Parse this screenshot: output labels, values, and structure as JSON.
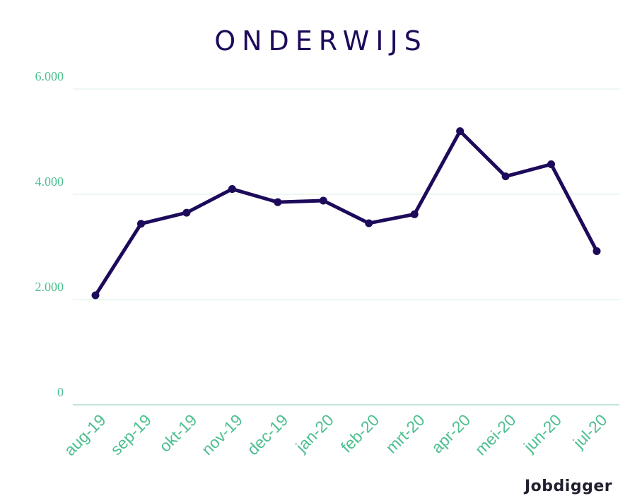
{
  "chart_data": {
    "type": "line",
    "title": "ONDERWIJS",
    "categories": [
      "aug-19",
      "sep-19",
      "okt-19",
      "nov-19",
      "dec-19",
      "jan-20",
      "feb-20",
      "mrt-20",
      "apr-20",
      "mei-20",
      "jun-20",
      "jul-20"
    ],
    "series": [
      {
        "values": [
          2080,
          3440,
          3650,
          4100,
          3850,
          3880,
          3450,
          3620,
          5200,
          4340,
          4570,
          2920
        ]
      }
    ],
    "yticks": [
      "0",
      "2.000",
      "4.000",
      "6.000"
    ],
    "ytick_values": [
      0,
      2000,
      4000,
      6000
    ],
    "ylim": [
      0,
      6000
    ],
    "xlabel": "",
    "ylabel": "",
    "grid": true,
    "colors": {
      "line": "#1e0a5a",
      "ticks": "#4cbf8f",
      "grid": "#d8efe6",
      "axis": "#a8ddc8"
    }
  },
  "brand": {
    "logo_text": "Jobdigger"
  }
}
